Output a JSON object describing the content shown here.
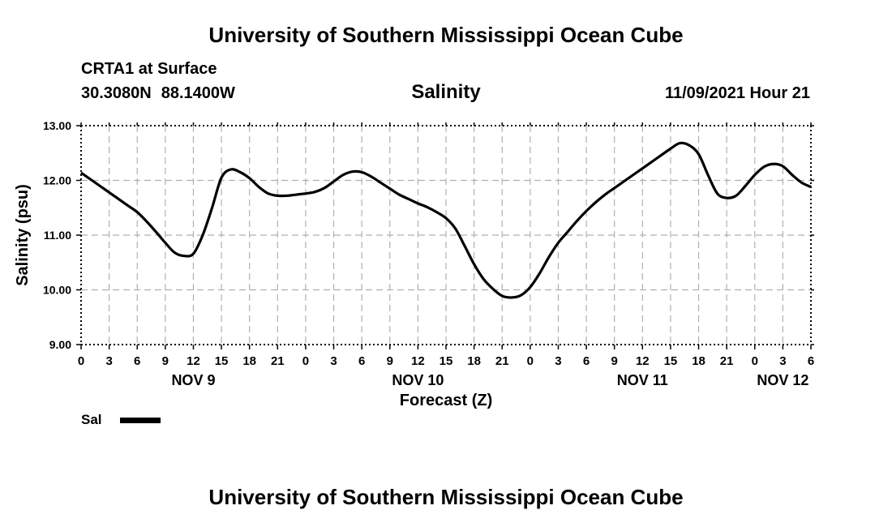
{
  "header": {
    "top_title": "University of Southern Mississippi Ocean Cube",
    "bottom_title": "University of Southern Mississippi Ocean Cube",
    "station": "CRTA1 at Surface",
    "lat": "30.3080N",
    "lon": "88.1400W",
    "variable": "Salinity",
    "timestamp": "11/09/2021 Hour 21"
  },
  "legend": {
    "label": "Sal"
  },
  "chart_data": {
    "type": "line",
    "title": "Salinity",
    "xlabel": "Forecast (Z)",
    "ylabel": "Salinity (psu)",
    "ylim": [
      9,
      13
    ],
    "xlim": [
      0,
      78
    ],
    "x_unit": "hours from NOV 9 00Z",
    "x_tick_labels": [
      "0",
      "3",
      "6",
      "9",
      "12",
      "15",
      "18",
      "21",
      "0",
      "3",
      "6",
      "9",
      "12",
      "15",
      "18",
      "21",
      "0",
      "3",
      "6",
      "9",
      "12",
      "15",
      "18",
      "21",
      "0",
      "3",
      "6"
    ],
    "y_tick_labels": [
      "9.00",
      "10.00",
      "11.00",
      "12.00",
      "13.00"
    ],
    "y_ticks": [
      9,
      10,
      11,
      12,
      13
    ],
    "date_labels": [
      {
        "label": "NOV 9",
        "hour": 12
      },
      {
        "label": "NOV 10",
        "hour": 36
      },
      {
        "label": "NOV 11",
        "hour": 60
      },
      {
        "label": "NOV 12",
        "hour": 75
      }
    ],
    "grid": true,
    "series": [
      {
        "name": "Sal",
        "x": [
          0,
          2,
          4,
          5,
          6,
          7,
          8,
          9,
          10,
          11,
          12,
          13,
          14,
          15,
          16,
          17,
          18,
          19,
          20,
          21,
          22,
          23,
          24,
          25,
          26,
          27,
          28,
          29,
          30,
          31,
          32,
          33,
          34,
          35,
          36,
          37,
          38,
          39,
          40,
          41,
          42,
          43,
          44,
          45,
          46,
          47,
          48,
          49,
          50,
          51,
          52,
          53,
          54,
          55,
          56,
          57,
          58,
          59,
          60,
          61,
          62,
          63,
          64,
          65,
          66,
          67,
          68,
          69,
          70,
          71,
          72,
          73,
          74,
          75,
          76,
          77,
          78
        ],
        "values": [
          12.14,
          11.9,
          11.66,
          11.54,
          11.42,
          11.25,
          11.06,
          10.86,
          10.68,
          10.62,
          10.66,
          11.0,
          11.5,
          12.05,
          12.2,
          12.15,
          12.04,
          11.88,
          11.76,
          11.72,
          11.72,
          11.74,
          11.76,
          11.79,
          11.86,
          11.98,
          12.1,
          12.16,
          12.15,
          12.07,
          11.96,
          11.85,
          11.74,
          11.66,
          11.58,
          11.51,
          11.42,
          11.31,
          11.12,
          10.8,
          10.47,
          10.2,
          10.02,
          9.89,
          9.86,
          9.9,
          10.05,
          10.3,
          10.6,
          10.86,
          11.06,
          11.26,
          11.44,
          11.6,
          11.74,
          11.86,
          11.98,
          12.1,
          12.22,
          12.34,
          12.46,
          12.58,
          12.68,
          12.64,
          12.48,
          12.1,
          11.76,
          11.68,
          11.72,
          11.9,
          12.1,
          12.25,
          12.3,
          12.26,
          12.1,
          11.96,
          11.88
        ]
      }
    ]
  }
}
